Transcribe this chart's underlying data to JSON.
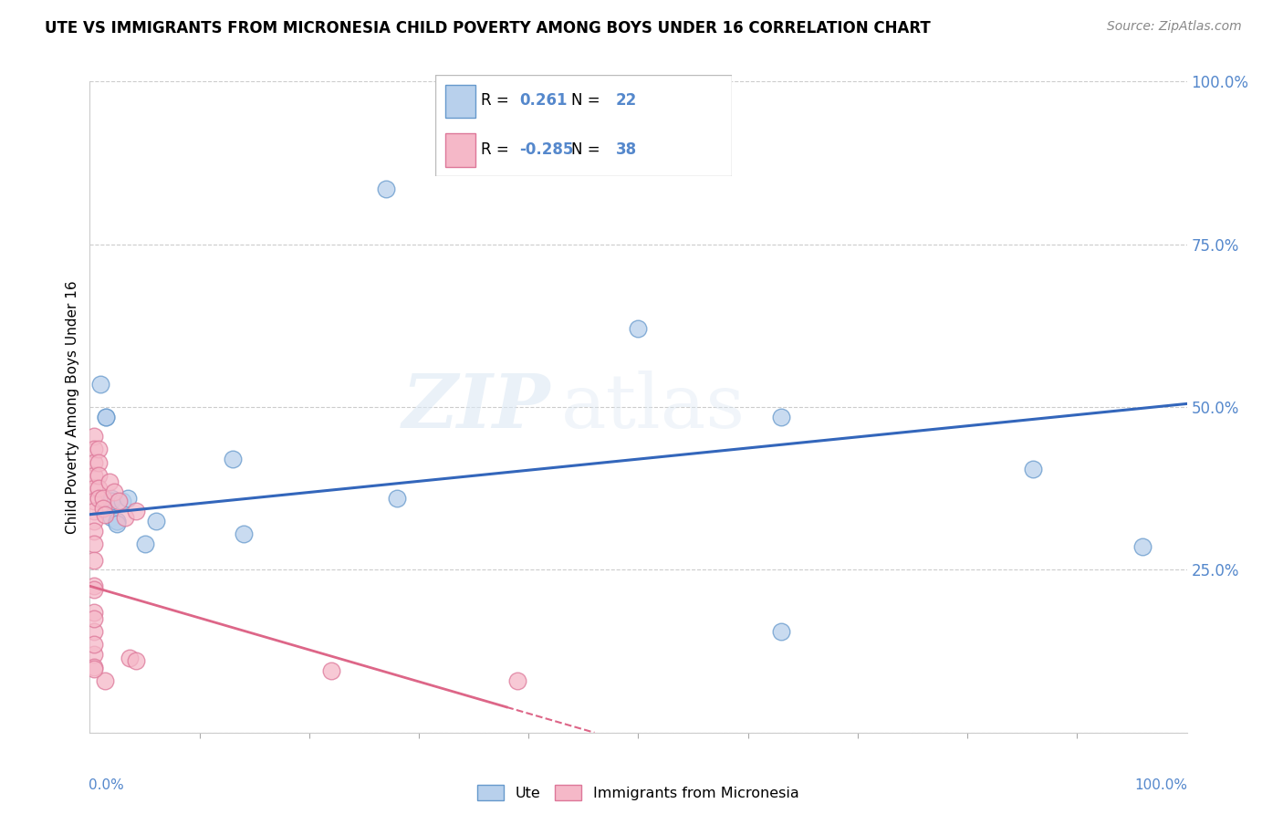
{
  "title": "UTE VS IMMIGRANTS FROM MICRONESIA CHILD POVERTY AMONG BOYS UNDER 16 CORRELATION CHART",
  "source": "Source: ZipAtlas.com",
  "ylabel": "Child Poverty Among Boys Under 16",
  "xlim": [
    0.0,
    1.0
  ],
  "ylim": [
    0.0,
    1.0
  ],
  "ytick_positions": [
    0.0,
    0.25,
    0.5,
    0.75,
    1.0
  ],
  "ytick_labels": [
    "",
    "25.0%",
    "50.0%",
    "75.0%",
    "100.0%"
  ],
  "watermark_zip": "ZIP",
  "watermark_atlas": "atlas",
  "legend_ute_R": "0.261",
  "legend_ute_N": "22",
  "legend_micro_R": "-0.285",
  "legend_micro_N": "38",
  "blue_fill": "#b8d0ec",
  "blue_edge": "#6699cc",
  "pink_fill": "#f5b8c8",
  "pink_edge": "#dd7799",
  "blue_line": "#3366bb",
  "pink_line": "#dd6688",
  "tick_color": "#5588cc",
  "grid_color": "#cccccc",
  "blue_line_x0": 0.0,
  "blue_line_y0": 0.335,
  "blue_line_x1": 1.0,
  "blue_line_y1": 0.505,
  "pink_line_x0": 0.0,
  "pink_line_y0": 0.225,
  "pink_line_x1": 0.46,
  "pink_line_y1": 0.0,
  "ute_points": [
    [
      0.01,
      0.535
    ],
    [
      0.015,
      0.485
    ],
    [
      0.015,
      0.485
    ],
    [
      0.02,
      0.36
    ],
    [
      0.02,
      0.355
    ],
    [
      0.02,
      0.33
    ],
    [
      0.025,
      0.325
    ],
    [
      0.025,
      0.325
    ],
    [
      0.03,
      0.355
    ],
    [
      0.035,
      0.36
    ],
    [
      0.05,
      0.29
    ],
    [
      0.06,
      0.325
    ],
    [
      0.13,
      0.42
    ],
    [
      0.14,
      0.305
    ],
    [
      0.27,
      0.835
    ],
    [
      0.28,
      0.36
    ],
    [
      0.5,
      0.62
    ],
    [
      0.63,
      0.485
    ],
    [
      0.63,
      0.155
    ],
    [
      0.86,
      0.405
    ],
    [
      0.96,
      0.285
    ],
    [
      0.025,
      0.32
    ]
  ],
  "micro_points": [
    [
      0.004,
      0.455
    ],
    [
      0.004,
      0.435
    ],
    [
      0.004,
      0.415
    ],
    [
      0.004,
      0.395
    ],
    [
      0.004,
      0.375
    ],
    [
      0.004,
      0.355
    ],
    [
      0.004,
      0.34
    ],
    [
      0.004,
      0.325
    ],
    [
      0.004,
      0.31
    ],
    [
      0.004,
      0.29
    ],
    [
      0.004,
      0.265
    ],
    [
      0.004,
      0.225
    ],
    [
      0.004,
      0.185
    ],
    [
      0.004,
      0.155
    ],
    [
      0.004,
      0.12
    ],
    [
      0.004,
      0.1
    ],
    [
      0.008,
      0.435
    ],
    [
      0.008,
      0.415
    ],
    [
      0.008,
      0.395
    ],
    [
      0.008,
      0.375
    ],
    [
      0.008,
      0.36
    ],
    [
      0.012,
      0.36
    ],
    [
      0.012,
      0.345
    ],
    [
      0.014,
      0.335
    ],
    [
      0.014,
      0.08
    ],
    [
      0.018,
      0.385
    ],
    [
      0.022,
      0.37
    ],
    [
      0.026,
      0.355
    ],
    [
      0.032,
      0.33
    ],
    [
      0.036,
      0.115
    ],
    [
      0.042,
      0.34
    ],
    [
      0.042,
      0.11
    ],
    [
      0.22,
      0.095
    ],
    [
      0.39,
      0.08
    ],
    [
      0.004,
      0.22
    ],
    [
      0.004,
      0.175
    ],
    [
      0.004,
      0.135
    ],
    [
      0.004,
      0.098
    ]
  ]
}
